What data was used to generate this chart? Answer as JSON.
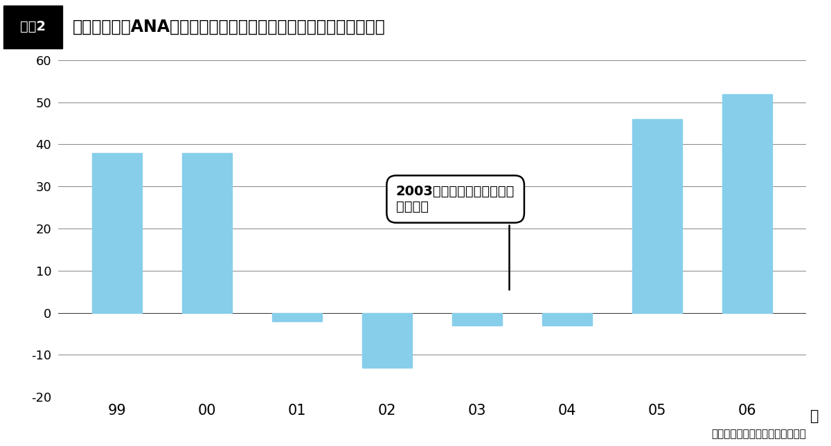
{
  "title": "全日本空輸（ANA）のホテル事業の営業利益の推移（単位：億円）",
  "title_label": "図表2",
  "categories": [
    "99",
    "00",
    "01",
    "02",
    "03",
    "04",
    "05",
    "06"
  ],
  "values": [
    38,
    38,
    -2,
    -13,
    -3,
    -3,
    46,
    52
  ],
  "bar_color": "#87CEEB",
  "ylim": [
    -20,
    60
  ],
  "yticks": [
    -20,
    -10,
    0,
    10,
    20,
    30,
    40,
    50,
    60
  ],
  "xlabel_suffix": "年",
  "annotation_text": "2003年に海外ホテル事業は\n完全撤退",
  "source_text": "出所：公開資料をもとに筆者作成",
  "background_color": "#ffffff",
  "grid_color": "#333333",
  "title_box_bg": "#000000",
  "title_box_text_color": "#ffffff"
}
